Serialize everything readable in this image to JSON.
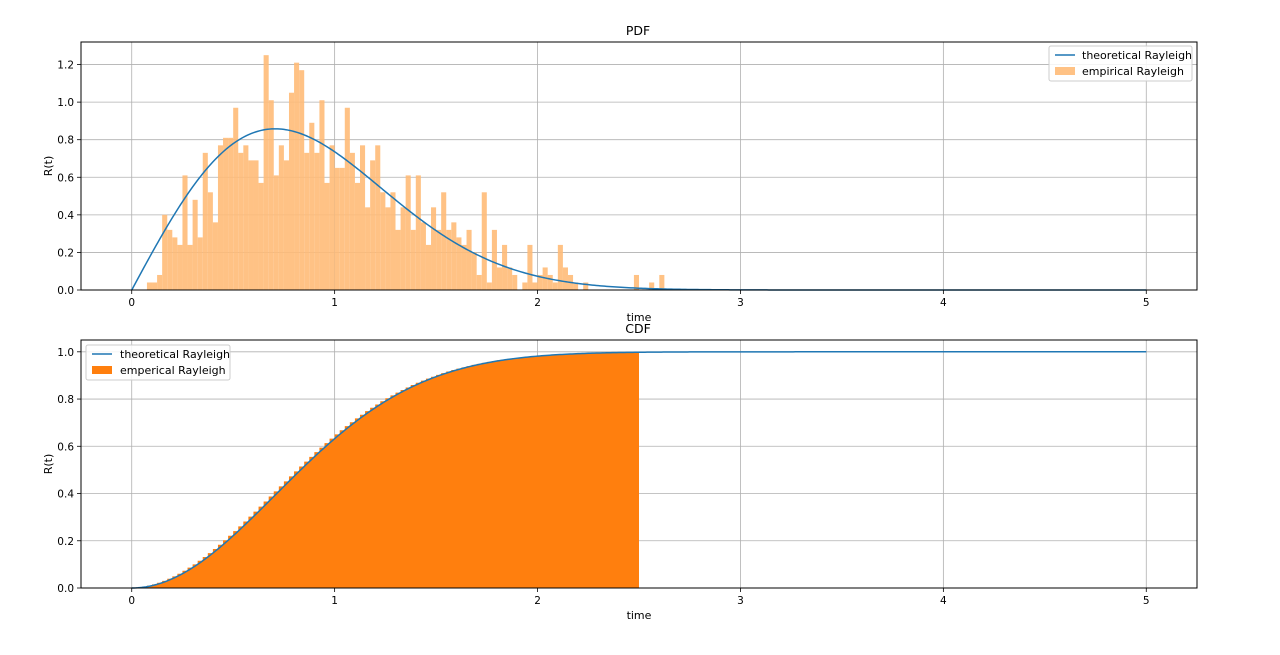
{
  "chart_data": [
    {
      "type": "histogram",
      "title": "PDF",
      "xlabel": "time",
      "ylabel": "R(t)",
      "xlim": [
        -0.25,
        5.25
      ],
      "ylim": [
        0,
        1.32
      ],
      "xticks": [
        "0",
        "1",
        "2",
        "3",
        "4",
        "5"
      ],
      "yticks": [
        "0.0",
        "0.2",
        "0.4",
        "0.6",
        "0.8",
        "1.0",
        "1.2"
      ],
      "grid": true,
      "legend_position": "top-right",
      "series": [
        {
          "name": "theoretical Rayleigh",
          "kind": "line",
          "color": "#1f77b4",
          "function": "rayleigh_pdf",
          "sigma": 0.707,
          "x_range": [
            0,
            5
          ]
        },
        {
          "name": "empirical Rayleigh",
          "kind": "histogram",
          "color": "#ffbb78",
          "opacity": 0.9,
          "bin_start": 0.0,
          "bin_width": 0.025,
          "values": [
            0,
            0,
            0,
            0.04,
            0.04,
            0.08,
            0.4,
            0.32,
            0.28,
            0.24,
            0.61,
            0.24,
            0.48,
            0.28,
            0.73,
            0.52,
            0.36,
            0.77,
            0.81,
            0.81,
            0.97,
            0.73,
            0.77,
            0.69,
            0.69,
            0.57,
            1.25,
            1.01,
            0.61,
            0.77,
            0.69,
            1.05,
            1.21,
            1.17,
            0.73,
            0.89,
            0.73,
            1.01,
            0.57,
            0.77,
            0.65,
            0.65,
            0.97,
            0.73,
            0.57,
            0.77,
            0.44,
            0.69,
            0.77,
            0.52,
            0.44,
            0.52,
            0.32,
            0.44,
            0.61,
            0.32,
            0.61,
            0.36,
            0.24,
            0.44,
            0.32,
            0.52,
            0.32,
            0.36,
            0.28,
            0.24,
            0.32,
            0.2,
            0.08,
            0.52,
            0.04,
            0.32,
            0.12,
            0.24,
            0.12,
            0.08,
            0,
            0.04,
            0.24,
            0.04,
            0.08,
            0.12,
            0.08,
            0.04,
            0.24,
            0.12,
            0.08,
            0.04,
            0,
            0.04,
            0,
            0,
            0,
            0,
            0,
            0,
            0,
            0,
            0,
            0.08,
            0,
            0,
            0.04,
            0,
            0.08
          ]
        }
      ]
    },
    {
      "type": "histogram",
      "title": "CDF",
      "xlabel": "time",
      "ylabel": "R(t)",
      "xlim": [
        -0.25,
        5.25
      ],
      "ylim": [
        0,
        1.05
      ],
      "xticks": [
        "0",
        "1",
        "2",
        "3",
        "4",
        "5"
      ],
      "yticks": [
        "0.0",
        "0.2",
        "0.4",
        "0.6",
        "0.8",
        "1.0"
      ],
      "grid": true,
      "legend_position": "top-left",
      "series": [
        {
          "name": "theoretical Rayleigh",
          "kind": "line",
          "color": "#1f77b4",
          "function": "rayleigh_cdf",
          "sigma": 0.707,
          "x_range": [
            0,
            5
          ]
        },
        {
          "name": "emperical Rayleigh",
          "kind": "cumulative_histogram",
          "color": "#ff7f0e",
          "bin_width": 0.025,
          "x_range": [
            0,
            2.5
          ]
        }
      ]
    }
  ]
}
